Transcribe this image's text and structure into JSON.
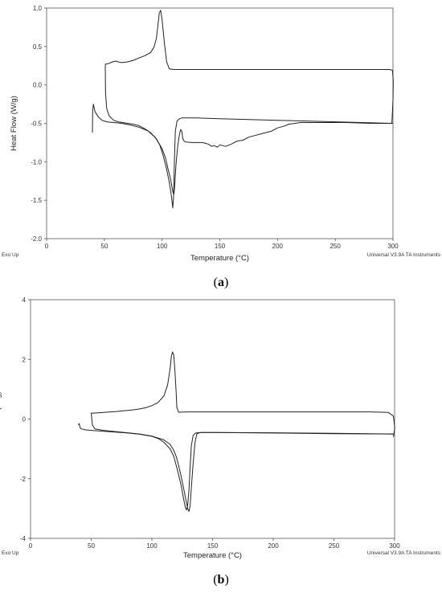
{
  "panels": [
    {
      "caption_letter": "a",
      "caption_open": "(",
      "caption_close": ")",
      "corner_left": "Exo Up",
      "corner_right": "Universal V3.9A TA Instruments",
      "chart_data": {
        "type": "line",
        "xlabel": "Temperature (°C)",
        "ylabel": "Heat Flow (W/g)",
        "xlim": [
          0,
          300
        ],
        "ylim": [
          -2.0,
          1.0
        ],
        "x_ticks": [
          0,
          50,
          100,
          150,
          200,
          250,
          300
        ],
        "y_ticks": [
          1.0,
          0.5,
          0.0,
          -0.5,
          -1.0,
          -1.5,
          -2.0
        ],
        "y_tick_labels": [
          "1.0",
          "0.5",
          "0.0",
          "-0.5",
          "-1.0",
          "-1.5",
          "-2.0"
        ],
        "x_tick_labels": [
          "0",
          "50",
          "100",
          "150",
          "200",
          "250",
          "300"
        ],
        "grid": false,
        "series": [
          {
            "x": [
              39.7,
              39.9,
              40.5,
              42,
              45,
              48,
              52,
              58,
              65,
              72,
              80,
              88,
              94,
              98,
              101,
              104,
              106,
              107.5,
              108.5,
              109.3,
              110,
              110.7,
              111.5,
              113,
              115,
              117,
              120,
              130,
              150,
              200,
              250,
              299
            ],
            "y": [
              -0.62,
              -0.35,
              -0.25,
              -0.35,
              -0.42,
              -0.46,
              -0.48,
              -0.49,
              -0.5,
              -0.52,
              -0.55,
              -0.6,
              -0.68,
              -0.78,
              -0.92,
              -1.1,
              -1.25,
              -1.38,
              -1.5,
              -1.6,
              -1.45,
              -1.0,
              -0.6,
              -0.47,
              -0.44,
              -0.43,
              -0.43,
              -0.43,
              -0.44,
              -0.46,
              -0.48,
              -0.5
            ]
          },
          {
            "x": [
              299,
              300,
              300.3,
              299.5,
              297,
              280,
              250,
              200,
              150,
              120,
              110,
              106.2,
              104,
              102,
              100,
              98.8,
              97.5,
              96.5,
              95,
              93,
              90,
              85,
              80,
              75,
              70,
              65,
              62,
              60,
              57,
              54,
              51.5,
              51,
              50.8,
              51,
              52,
              54,
              58,
              62,
              66,
              70,
              75,
              80,
              85,
              90,
              95,
              100,
              103,
              105,
              107,
              108.5,
              109.5,
              110.3,
              111,
              112,
              113.5,
              115,
              116,
              117,
              118,
              119,
              120,
              125,
              130,
              135,
              140,
              143,
              145,
              148,
              150,
              155,
              160,
              165,
              170,
              175,
              180,
              185,
              190,
              195,
              200,
              205,
              210,
              215,
              220,
              240,
              260,
              280,
              300
            ],
            "y": [
              -0.5,
              -0.2,
              0.05,
              0.19,
              0.2,
              0.2,
              0.2,
              0.2,
              0.2,
              0.2,
              0.2,
              0.21,
              0.3,
              0.55,
              0.85,
              0.97,
              0.93,
              0.78,
              0.6,
              0.49,
              0.42,
              0.38,
              0.35,
              0.32,
              0.3,
              0.29,
              0.3,
              0.31,
              0.3,
              0.28,
              0.27,
              0.27,
              0.25,
              -0.1,
              -0.3,
              -0.4,
              -0.46,
              -0.48,
              -0.49,
              -0.5,
              -0.51,
              -0.53,
              -0.57,
              -0.62,
              -0.7,
              -0.83,
              -0.95,
              -1.08,
              -1.2,
              -1.32,
              -1.4,
              -1.42,
              -1.3,
              -1.05,
              -0.8,
              -0.65,
              -0.58,
              -0.6,
              -0.7,
              -0.73,
              -0.74,
              -0.75,
              -0.75,
              -0.75,
              -0.77,
              -0.8,
              -0.79,
              -0.81,
              -0.78,
              -0.8,
              -0.77,
              -0.73,
              -0.72,
              -0.68,
              -0.66,
              -0.64,
              -0.62,
              -0.6,
              -0.56,
              -0.54,
              -0.51,
              -0.5,
              -0.49,
              -0.49,
              -0.49,
              -0.5,
              -0.5
            ]
          }
        ]
      }
    },
    {
      "caption_letter": "b",
      "caption_open": "(",
      "caption_close": ")",
      "corner_left": "Exo Up",
      "corner_right": "Universal V3.9A TA Instruments",
      "chart_data": {
        "type": "line",
        "xlabel": "Temperature (°C)",
        "ylabel": "Heat Flow (W/g)",
        "xlim": [
          0,
          300
        ],
        "ylim": [
          -4,
          4
        ],
        "x_ticks": [
          0,
          50,
          100,
          150,
          200,
          250,
          300
        ],
        "y_ticks": [
          4,
          2,
          0,
          -2,
          -4
        ],
        "y_tick_labels": [
          "4",
          "2",
          "0",
          "-2",
          "-4"
        ],
        "x_tick_labels": [
          "0",
          "50",
          "100",
          "150",
          "200",
          "250",
          "300"
        ],
        "grid": false,
        "series": [
          {
            "x": [
              39.5,
              40,
              41,
              42,
              45,
              50,
              60,
              70,
              80,
              90,
              100,
              105,
              110,
              115,
              118,
              121,
              124,
              126,
              127.5,
              128.5,
              129.5,
              130.5,
              131.5,
              132.5,
              134,
              136,
              140,
              150,
              200,
              250,
              299
            ],
            "y": [
              -0.2,
              -0.15,
              -0.3,
              -0.33,
              -0.36,
              -0.38,
              -0.41,
              -0.44,
              -0.47,
              -0.51,
              -0.58,
              -0.65,
              -0.78,
              -1.0,
              -1.25,
              -1.7,
              -2.2,
              -2.65,
              -2.95,
              -3.05,
              -2.9,
              -2.4,
              -1.6,
              -0.9,
              -0.55,
              -0.47,
              -0.45,
              -0.45,
              -0.46,
              -0.48,
              -0.5
            ]
          },
          {
            "x": [
              299,
              300.2,
              299,
              295,
              280,
              250,
              200,
              150,
              130,
              122,
              120.5,
              120,
              119,
              118,
              117,
              116,
              115,
              113,
              110,
              105,
              100,
              95,
              90,
              85,
              80,
              70,
              60,
              52,
              50.5,
              50,
              51,
              53,
              60,
              70,
              80,
              90,
              100,
              110,
              115,
              118,
              120,
              122,
              124,
              126,
              128,
              129.5,
              130.5,
              131.5,
              132.5,
              134,
              135.5,
              137,
              140,
              150,
              200,
              250,
              299
            ],
            "y": [
              -0.6,
              -0.3,
              0.1,
              0.22,
              0.24,
              0.24,
              0.24,
              0.24,
              0.24,
              0.23,
              0.4,
              0.9,
              1.6,
              2.15,
              2.25,
              2.1,
              1.7,
              1.15,
              0.78,
              0.55,
              0.45,
              0.38,
              0.34,
              0.31,
              0.29,
              0.25,
              0.22,
              0.2,
              0.2,
              0.2,
              -0.2,
              -0.33,
              -0.38,
              -0.42,
              -0.46,
              -0.5,
              -0.57,
              -0.7,
              -0.85,
              -1.05,
              -1.25,
              -1.55,
              -1.9,
              -2.3,
              -2.7,
              -3.0,
              -3.1,
              -2.9,
              -2.3,
              -1.5,
              -0.8,
              -0.5,
              -0.45,
              -0.45,
              -0.47,
              -0.49,
              -0.5
            ]
          }
        ]
      }
    }
  ]
}
